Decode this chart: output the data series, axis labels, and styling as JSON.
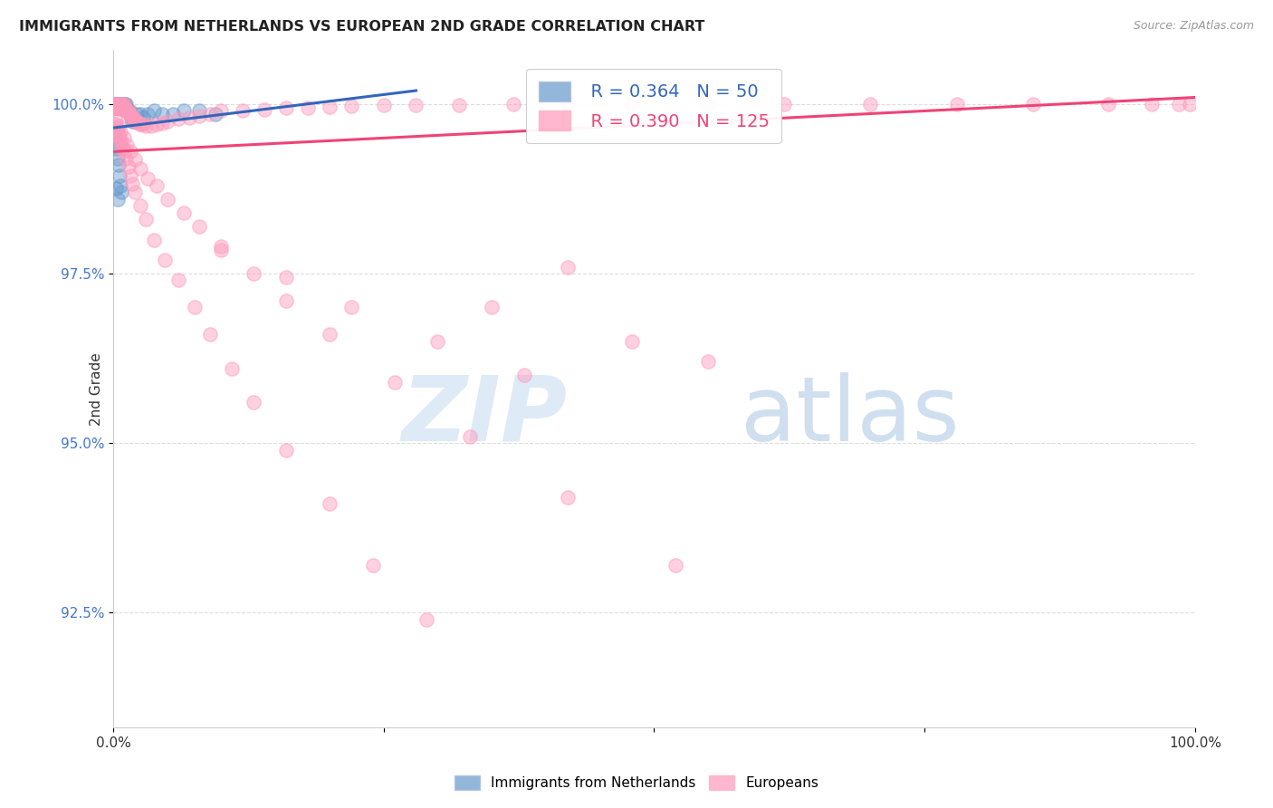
{
  "title": "IMMIGRANTS FROM NETHERLANDS VS EUROPEAN 2ND GRADE CORRELATION CHART",
  "source": "Source: ZipAtlas.com",
  "ylabel": "2nd Grade",
  "y_tick_labels": [
    "100.0%",
    "97.5%",
    "95.0%",
    "92.5%"
  ],
  "y_tick_values": [
    1.0,
    0.975,
    0.95,
    0.925
  ],
  "x_range": [
    0.0,
    1.0
  ],
  "y_range": [
    0.908,
    1.008
  ],
  "legend_r_blue": "0.364",
  "legend_n_blue": "50",
  "legend_r_pink": "0.390",
  "legend_n_pink": "125",
  "legend_label_blue": "Immigrants from Netherlands",
  "legend_label_pink": "Europeans",
  "blue_color": "#6699CC",
  "pink_color": "#FF99BB",
  "blue_line_color": "#3366BB",
  "pink_line_color": "#EE4477",
  "blue_scatter_x": [
    0.001,
    0.002,
    0.002,
    0.003,
    0.003,
    0.004,
    0.004,
    0.005,
    0.005,
    0.006,
    0.006,
    0.007,
    0.007,
    0.008,
    0.008,
    0.009,
    0.009,
    0.01,
    0.01,
    0.011,
    0.011,
    0.012,
    0.012,
    0.013,
    0.014,
    0.015,
    0.016,
    0.017,
    0.018,
    0.02,
    0.022,
    0.025,
    0.028,
    0.032,
    0.038,
    0.045,
    0.055,
    0.065,
    0.08,
    0.095,
    0.001,
    0.002,
    0.003,
    0.004,
    0.005,
    0.006,
    0.007,
    0.008,
    0.003,
    0.004
  ],
  "blue_scatter_y": [
    1.0,
    1.0,
    0.9995,
    1.0,
    0.9995,
    1.0,
    0.9995,
    1.0,
    0.9995,
    1.0,
    0.9995,
    1.0,
    0.9995,
    1.0,
    0.9995,
    1.0,
    0.9995,
    1.0,
    0.9995,
    1.0,
    0.9995,
    1.0,
    0.9995,
    0.999,
    0.999,
    0.999,
    0.9985,
    0.998,
    0.9975,
    0.9975,
    0.9985,
    0.9985,
    0.998,
    0.9985,
    0.999,
    0.9985,
    0.9985,
    0.999,
    0.999,
    0.9985,
    0.996,
    0.9945,
    0.9935,
    0.992,
    0.991,
    0.9895,
    0.988,
    0.987,
    0.9875,
    0.986
  ],
  "pink_scatter_x": [
    0.001,
    0.001,
    0.002,
    0.002,
    0.003,
    0.003,
    0.004,
    0.004,
    0.005,
    0.005,
    0.006,
    0.006,
    0.007,
    0.007,
    0.008,
    0.008,
    0.009,
    0.009,
    0.01,
    0.01,
    0.011,
    0.012,
    0.013,
    0.014,
    0.015,
    0.016,
    0.017,
    0.018,
    0.019,
    0.02,
    0.022,
    0.024,
    0.026,
    0.028,
    0.03,
    0.035,
    0.04,
    0.045,
    0.05,
    0.06,
    0.07,
    0.08,
    0.09,
    0.1,
    0.12,
    0.14,
    0.16,
    0.18,
    0.2,
    0.22,
    0.25,
    0.28,
    0.32,
    0.37,
    0.42,
    0.48,
    0.55,
    0.62,
    0.7,
    0.78,
    0.85,
    0.92,
    0.96,
    0.985,
    0.995,
    0.002,
    0.003,
    0.004,
    0.005,
    0.006,
    0.007,
    0.008,
    0.009,
    0.01,
    0.012,
    0.014,
    0.016,
    0.018,
    0.02,
    0.025,
    0.03,
    0.038,
    0.048,
    0.06,
    0.075,
    0.09,
    0.11,
    0.13,
    0.16,
    0.2,
    0.24,
    0.29,
    0.003,
    0.005,
    0.007,
    0.01,
    0.013,
    0.016,
    0.02,
    0.025,
    0.032,
    0.04,
    0.05,
    0.065,
    0.08,
    0.1,
    0.13,
    0.16,
    0.2,
    0.26,
    0.33,
    0.42,
    0.52,
    0.42,
    0.35,
    0.48,
    0.55,
    0.1,
    0.16,
    0.22,
    0.3,
    0.38
  ],
  "pink_scatter_y": [
    1.0,
    0.9995,
    1.0,
    0.9995,
    1.0,
    0.9995,
    1.0,
    0.9995,
    1.0,
    0.9995,
    1.0,
    0.9995,
    1.0,
    0.9995,
    1.0,
    0.9995,
    1.0,
    0.9995,
    1.0,
    0.9995,
    0.999,
    0.999,
    0.999,
    0.999,
    0.9985,
    0.9985,
    0.998,
    0.998,
    0.998,
    0.9975,
    0.9975,
    0.997,
    0.997,
    0.997,
    0.9968,
    0.9968,
    0.997,
    0.9972,
    0.9975,
    0.9978,
    0.998,
    0.9982,
    0.9985,
    0.999,
    0.999,
    0.9992,
    0.9994,
    0.9995,
    0.9996,
    0.9997,
    0.9998,
    0.9998,
    0.9999,
    1.0,
    1.0,
    1.0,
    1.0,
    1.0,
    1.0,
    1.0,
    1.0,
    1.0,
    1.0,
    1.0,
    1.0,
    0.997,
    0.9965,
    0.996,
    0.9955,
    0.995,
    0.9945,
    0.994,
    0.9935,
    0.993,
    0.992,
    0.9908,
    0.9895,
    0.9882,
    0.987,
    0.985,
    0.983,
    0.98,
    0.977,
    0.974,
    0.97,
    0.966,
    0.961,
    0.956,
    0.949,
    0.941,
    0.932,
    0.924,
    0.9975,
    0.9968,
    0.996,
    0.995,
    0.994,
    0.993,
    0.9918,
    0.9905,
    0.989,
    0.988,
    0.986,
    0.984,
    0.982,
    0.979,
    0.975,
    0.971,
    0.966,
    0.959,
    0.951,
    0.942,
    0.932,
    0.976,
    0.97,
    0.965,
    0.962,
    0.9785,
    0.9745,
    0.97,
    0.965,
    0.96
  ],
  "blue_trendline_x": [
    0.0,
    0.28
  ],
  "blue_trendline_y": [
    0.9965,
    1.002
  ],
  "pink_trendline_x": [
    0.0,
    1.0
  ],
  "pink_trendline_y": [
    0.993,
    1.001
  ],
  "background_color": "#ffffff",
  "grid_color": "#dddddd"
}
